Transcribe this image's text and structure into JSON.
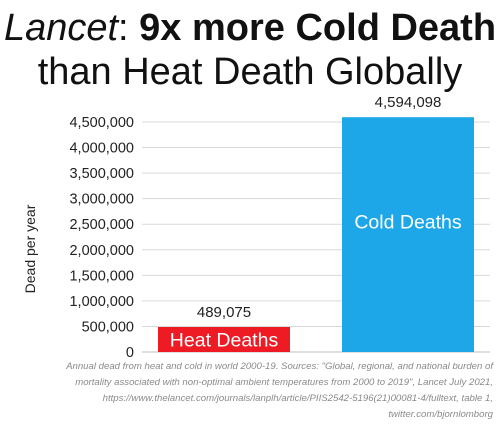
{
  "title": {
    "italic_part": "Lancet",
    "colon": ": ",
    "bold_part": "9x more Cold Death",
    "line2": "than Heat Death Globally"
  },
  "caption": {
    "lines": [
      "Annual dead from heat and cold in world 2000-19. Sources: \"Global, regional, and national burden of",
      "mortality associated with non-optimal ambient temperatures from 2000 to 2019\", Lancet July 2021,",
      "https://www.thelancet.com/journals/lanplh/article/PIIS2542-5196(21)00081-4/fulltext, table 1,",
      "twitter.com/bjornlomborg"
    ]
  },
  "chart_data": {
    "type": "bar",
    "ylabel": "Dead per year",
    "ylim": [
      0,
      4500000
    ],
    "yticks": [
      0,
      500000,
      1000000,
      1500000,
      2000000,
      2500000,
      3000000,
      3500000,
      4000000,
      4500000
    ],
    "ytick_labels": [
      "0",
      "500,000",
      "1,000,000",
      "1,500,000",
      "2,000,000",
      "2,500,000",
      "3,000,000",
      "3,500,000",
      "4,000,000",
      "4,500,000"
    ],
    "grid": true,
    "legend": "none",
    "categories": [
      "Heat Deaths",
      "Cold Deaths"
    ],
    "values": [
      489075,
      4594098
    ],
    "value_labels": [
      "489,075",
      "4,594,098"
    ],
    "colors": [
      "#ee1b24",
      "#1ea7e8"
    ],
    "gridline_color": "#d9d9d9",
    "axis_color": "#bfbfbf"
  }
}
